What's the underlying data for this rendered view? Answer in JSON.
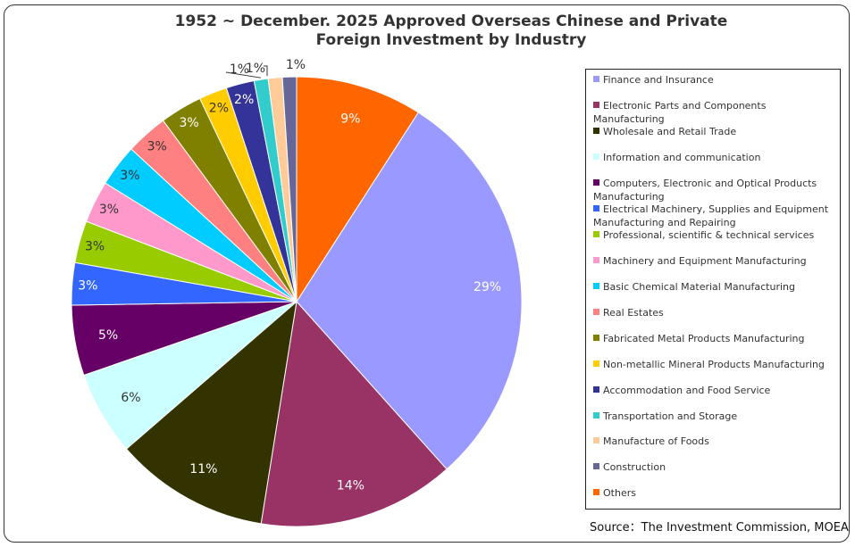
{
  "chart_data": {
    "type": "pie",
    "title": "1952 ~  December. 2025 Approved Overseas Chinese and Private Foreign Investment by Industry",
    "title_lines": [
      "1952 ~  December. 2025 Approved Overseas Chinese and Private",
      "Foreign Investment by Industry"
    ],
    "legend_position": "right",
    "slices": [
      {
        "name": "Finance and Insurance",
        "value": 29,
        "label": "29%",
        "color": "#9999FF"
      },
      {
        "name": "Electronic Parts and Components Manufacturing",
        "value": 14,
        "label": "14%",
        "color": "#993366"
      },
      {
        "name": "Wholesale and Retail Trade",
        "value": 11,
        "label": "11%",
        "color": "#333300"
      },
      {
        "name": "Information and communication",
        "value": 6,
        "label": "6%",
        "color": "#CCFFFF"
      },
      {
        "name": "Computers, Electronic and Optical Products Manufacturing",
        "value": 5,
        "label": "5%",
        "color": "#660066"
      },
      {
        "name": "Electrical Machinery, Supplies and Equipment Manufacturing and Repairing",
        "value": 3,
        "label": "3%",
        "color": "#3366FF"
      },
      {
        "name": "Professional, scientific & technical services",
        "value": 3,
        "label": "3%",
        "color": "#99CC00"
      },
      {
        "name": "Machinery and Equipment Manufacturing",
        "value": 3,
        "label": "3%",
        "color": "#FF99CC"
      },
      {
        "name": "Basic Chemical Material Manufacturing",
        "value": 3,
        "label": "3%",
        "color": "#00CCFF"
      },
      {
        "name": "Real Estates",
        "value": 3,
        "label": "3%",
        "color": "#FF8080"
      },
      {
        "name": "Fabricated Metal Products Manufacturing",
        "value": 3,
        "label": "3%",
        "color": "#808000"
      },
      {
        "name": "Non-metallic Mineral Products Manufacturing",
        "value": 2,
        "label": "2%",
        "color": "#FFCC00"
      },
      {
        "name": "Accommodation and Food Service",
        "value": 2,
        "label": "2%",
        "color": "#333399"
      },
      {
        "name": "Transportation and Storage",
        "value": 1,
        "label": "1%",
        "color": "#33CCCC"
      },
      {
        "name": "Manufacture of Foods",
        "value": 1,
        "label": "1%",
        "color": "#FFCC99"
      },
      {
        "name": "Construction",
        "value": 1,
        "label": "1%",
        "color": "#666699"
      },
      {
        "name": "Others",
        "value": 9,
        "label": "9%",
        "color": "#FF6600"
      }
    ]
  },
  "source": "Source：The Investment Commission, MOEA"
}
